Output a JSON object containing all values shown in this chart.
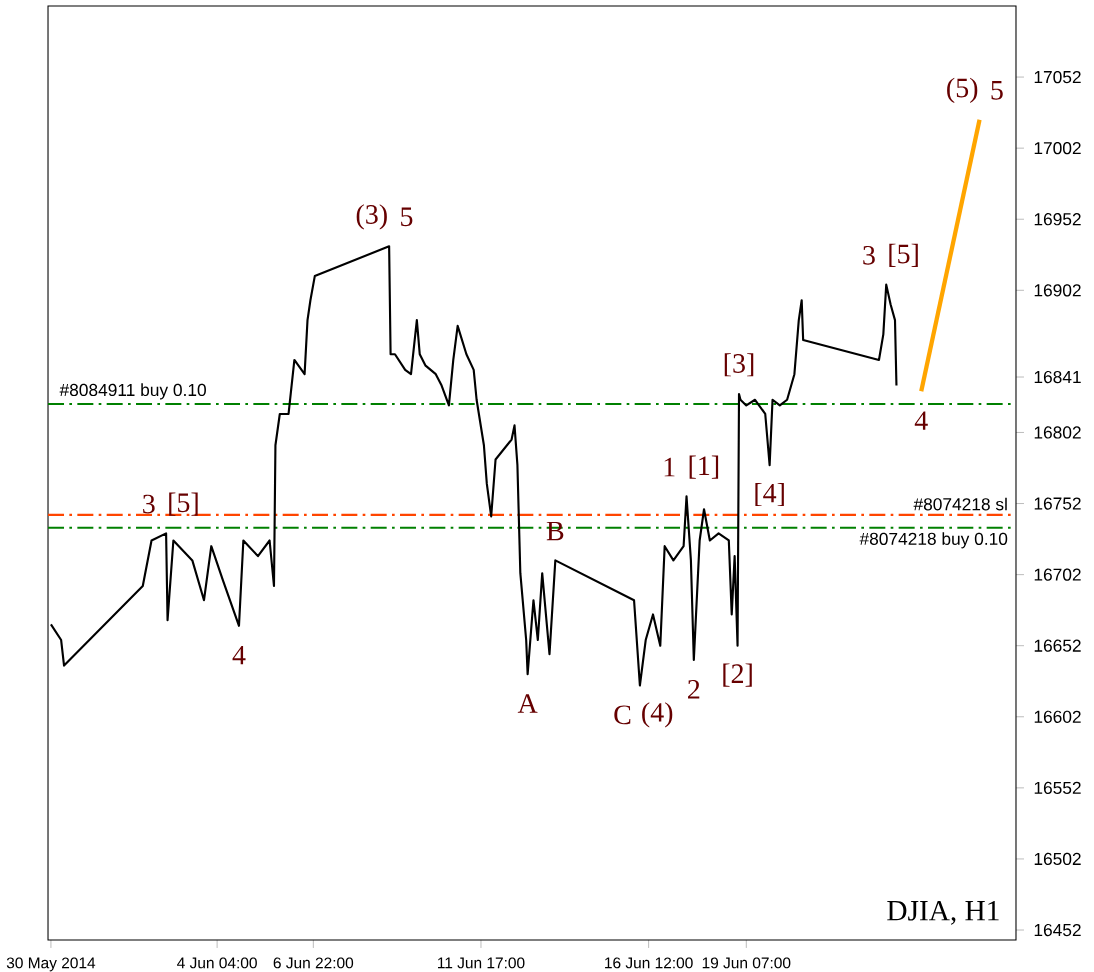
{
  "chart_data": {
    "type": "line",
    "annotations": [
      {
        "text": "(5)",
        "x": "2014-06-25T23:00",
        "y": 17022
      },
      {
        "text": "5",
        "x": "2014-06-25T23:00",
        "y": 17022
      },
      {
        "text": "(3)",
        "x": "2014-06-09T02:00",
        "y": 16933
      },
      {
        "text": "5",
        "x": "2014-06-09T02:00",
        "y": 16933
      },
      {
        "text": "3",
        "x": "2014-06-23T07:00",
        "y": 16906
      },
      {
        "text": "[5]",
        "x": "2014-06-23T07:00",
        "y": 16906
      },
      {
        "text": "[3]",
        "x": "2014-06-19T02:00",
        "y": 16829
      },
      {
        "text": "4",
        "x": "2014-06-24T07:00",
        "y": 16831
      },
      {
        "text": "3",
        "x": "2014-06-02T17:00",
        "y": 16731
      },
      {
        "text": "[5]",
        "x": "2014-06-02T17:00",
        "y": 16731
      },
      {
        "text": "1",
        "x": "2014-06-17T14:00",
        "y": 16757
      },
      {
        "text": "[1]",
        "x": "2014-06-17T14:00",
        "y": 16757
      },
      {
        "text": "[4]",
        "x": "2014-06-19T23:00",
        "y": 16779
      },
      {
        "text": "B",
        "x": "2014-06-13T20:00",
        "y": 16712
      },
      {
        "text": "4",
        "x": "2014-06-04T19:00",
        "y": 16666
      },
      {
        "text": "2",
        "x": "2014-06-17T19:00",
        "y": 16642
      },
      {
        "text": "[2]",
        "x": "2014-06-19T01:00",
        "y": 16652
      },
      {
        "text": "A",
        "x": "2014-06-13T01:00",
        "y": 16632
      },
      {
        "text": "C",
        "x": "2014-06-16T06:00",
        "y": 16624
      },
      {
        "text": "(4)",
        "x": "2014-06-16T06:00",
        "y": 16624
      },
      "DJIA, H1"
    ],
    "xlim": [
      "2014-05-30T08:00",
      "2014-06-27T00:00"
    ],
    "xticks": [
      {
        "value": "2014-05-30T10:00",
        "label": "30 May 2014"
      },
      {
        "value": "2014-06-04T04:00",
        "label": "4 Jun 04:00"
      },
      {
        "value": "2014-06-06T22:00",
        "label": "6 Jun 22:00"
      },
      {
        "value": "2014-06-11T17:00",
        "label": "11 Jun 17:00"
      },
      {
        "value": "2014-06-16T12:00",
        "label": "16 Jun 12:00"
      },
      {
        "value": "2014-06-19T07:00",
        "label": "19 Jun 07:00"
      }
    ],
    "ylim": [
      16445,
      17102
    ],
    "yticks": [
      16452,
      16502,
      16552,
      16602,
      16652,
      16702,
      16752,
      16802,
      {
        "value": 16841,
        "label": "16841"
      },
      16902,
      16952,
      17002,
      17052
    ],
    "ref_lines": [
      {
        "axis": "y",
        "value": 16822,
        "label": "#8084911 buy 0.10",
        "color": "#008000",
        "line_style": "dashed"
      },
      {
        "axis": "y",
        "value": 16744,
        "label": "#8074218 sl",
        "color": "#ff4500",
        "line_style": "dashed"
      },
      {
        "axis": "y",
        "value": 16735,
        "label": "#8074218 buy 0.10",
        "color": "#008000",
        "line_style": "dashed"
      }
    ],
    "grid": false,
    "series": [
      {
        "color": "#000000",
        "x": [
          "2014-05-30T10:00",
          "2014-05-30T17:00",
          "2014-05-30T19:00",
          "2014-06-02T01:00",
          "2014-06-02T07:00",
          "2014-06-02T17:00",
          "2014-06-02T18:00",
          "2014-06-02T22:00",
          "2014-06-03T11:00",
          "2014-06-03T19:00",
          "2014-06-04T00:00",
          "2014-06-04T08:00",
          "2014-06-04T19:00",
          "2014-06-04T22:00",
          "2014-06-05T08:00",
          "2014-06-05T16:00",
          "2014-06-05T19:00",
          "2014-06-05T20:00",
          "2014-06-05T23:00",
          "2014-06-06T05:00",
          "2014-06-06T09:00",
          "2014-06-06T16:00",
          "2014-06-06T18:00",
          "2014-06-06T20:00",
          "2014-06-06T23:00",
          "2014-06-09T02:00",
          "2014-06-09T03:00",
          "2014-06-09T06:00",
          "2014-06-09T13:00",
          "2014-06-09T17:00",
          "2014-06-09T21:00",
          "2014-06-09T23:00",
          "2014-06-10T03:00",
          "2014-06-10T10:00",
          "2014-06-10T14:00",
          "2014-06-10T19:00",
          "2014-06-10T22:00",
          "2014-06-11T01:00",
          "2014-06-11T07:00",
          "2014-06-11T12:00",
          "2014-06-11T14:00",
          "2014-06-11T19:00",
          "2014-06-11T21:00",
          "2014-06-12T00:00",
          "2014-06-12T03:00",
          "2014-06-12T14:00",
          "2014-06-12T16:00",
          "2014-06-12T18:00",
          "2014-06-12T20:00",
          "2014-06-13T00:00",
          "2014-06-13T01:00",
          "2014-06-13T05:00",
          "2014-06-13T08:00",
          "2014-06-13T11:00",
          "2014-06-13T16:00",
          "2014-06-13T20:00",
          "2014-06-16T02:00",
          "2014-06-16T06:00",
          "2014-06-16T10:00",
          "2014-06-16T15:00",
          "2014-06-16T20:00",
          "2014-06-16T23:00",
          "2014-06-17T05:00",
          "2014-06-17T12:00",
          "2014-06-17T14:00",
          "2014-06-17T17:00",
          "2014-06-17T19:00",
          "2014-06-17T23:00",
          "2014-06-18T02:00",
          "2014-06-18T06:00",
          "2014-06-18T12:00",
          "2014-06-18T19:00",
          "2014-06-18T21:00",
          "2014-06-18T23:00",
          "2014-06-19T01:00",
          "2014-06-19T02:00",
          "2014-06-19T03:00",
          "2014-06-19T07:00",
          "2014-06-19T13:00",
          "2014-06-19T20:00",
          "2014-06-19T23:00",
          "2014-06-20T01:00",
          "2014-06-20T06:00",
          "2014-06-20T11:00",
          "2014-06-20T16:00",
          "2014-06-20T19:00",
          "2014-06-20T21:00",
          "2014-06-20T22:00",
          "2014-06-23T02:00",
          "2014-06-23T05:00",
          "2014-06-23T07:00",
          "2014-06-23T10:00",
          "2014-06-23T13:00",
          "2014-06-23T14:00"
        ],
        "values": [
          16667,
          16656,
          16638,
          16694,
          16726,
          16731,
          16670,
          16726,
          16712,
          16684,
          16722,
          16698,
          16666,
          16726,
          16715,
          16726,
          16694,
          16793,
          16815,
          16815,
          16853,
          16843,
          16881,
          16895,
          16912,
          16933,
          16857,
          16857,
          16846,
          16843,
          16881,
          16857,
          16849,
          16843,
          16835,
          16821,
          16853,
          16877,
          16857,
          16846,
          16825,
          16793,
          16766,
          16743,
          16783,
          16797,
          16807,
          16779,
          16703,
          16656,
          16632,
          16684,
          16656,
          16703,
          16646,
          16712,
          16684,
          16624,
          16656,
          16674,
          16652,
          16722,
          16712,
          16722,
          16757,
          16712,
          16642,
          16726,
          16748,
          16726,
          16731,
          16726,
          16674,
          16715,
          16652,
          16829,
          16825,
          16821,
          16825,
          16815,
          16779,
          16825,
          16821,
          16825,
          16843,
          16881,
          16895,
          16867,
          16853,
          16871,
          16906,
          16892,
          16881,
          16835
        ]
      },
      {
        "color": "#ffa500",
        "x": [
          "2014-06-24T07:00",
          "2014-06-25T23:00"
        ],
        "values": [
          16831,
          17022
        ]
      }
    ]
  }
}
